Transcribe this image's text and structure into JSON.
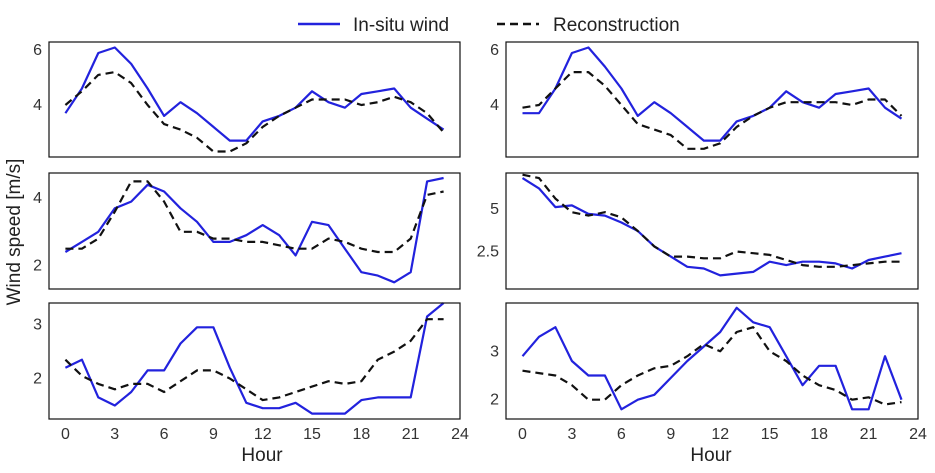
{
  "legend": {
    "items": [
      {
        "label": "In-situ wind",
        "color": "#2222dd",
        "style": "solid"
      },
      {
        "label": "Reconstruction",
        "color": "#111111",
        "style": "dashed"
      }
    ]
  },
  "ylabel": "Wind speed [m/s]",
  "xlabel": "Hour",
  "chart_data": [
    {
      "type": "line",
      "row": 0,
      "col": 0,
      "x": [
        0,
        1,
        2,
        3,
        4,
        5,
        6,
        7,
        8,
        9,
        10,
        11,
        12,
        13,
        14,
        15,
        16,
        17,
        18,
        19,
        20,
        21,
        22,
        23
      ],
      "xlim": [
        -1,
        24
      ],
      "xticks": [
        0,
        3,
        6,
        9,
        12,
        15,
        18,
        21,
        24
      ],
      "ylim": [
        2.1,
        6.3
      ],
      "yticks": [
        4,
        6
      ],
      "series": [
        {
          "name": "In-situ wind",
          "values": [
            3.7,
            4.6,
            5.9,
            6.1,
            5.5,
            4.6,
            3.6,
            4.1,
            3.7,
            3.2,
            2.7,
            2.7,
            3.4,
            3.6,
            3.9,
            4.5,
            4.1,
            3.9,
            4.4,
            4.5,
            4.6,
            3.9,
            3.5,
            3.1
          ]
        },
        {
          "name": "Reconstruction",
          "values": [
            4.0,
            4.5,
            5.1,
            5.2,
            4.8,
            4.0,
            3.3,
            3.1,
            2.8,
            2.3,
            2.3,
            2.6,
            3.2,
            3.6,
            3.9,
            4.2,
            4.2,
            4.2,
            4.0,
            4.1,
            4.3,
            4.1,
            3.7,
            3.0
          ]
        }
      ]
    },
    {
      "type": "line",
      "row": 0,
      "col": 1,
      "x": [
        0,
        1,
        2,
        3,
        4,
        5,
        6,
        7,
        8,
        9,
        10,
        11,
        12,
        13,
        14,
        15,
        16,
        17,
        18,
        19,
        20,
        21,
        22,
        23
      ],
      "xlim": [
        -1,
        24
      ],
      "xticks": [
        0,
        3,
        6,
        9,
        12,
        15,
        18,
        21,
        24
      ],
      "ylim": [
        2.1,
        6.3
      ],
      "yticks": [
        4,
        6
      ],
      "series": [
        {
          "name": "In-situ wind",
          "values": [
            3.7,
            3.7,
            4.6,
            5.9,
            6.1,
            5.4,
            4.6,
            3.6,
            4.1,
            3.7,
            3.2,
            2.7,
            2.7,
            3.4,
            3.6,
            3.9,
            4.5,
            4.1,
            3.9,
            4.4,
            4.5,
            4.6,
            3.9,
            3.5
          ]
        },
        {
          "name": "Reconstruction",
          "values": [
            3.9,
            4.0,
            4.6,
            5.2,
            5.2,
            4.7,
            4.0,
            3.3,
            3.1,
            2.9,
            2.4,
            2.4,
            2.6,
            3.2,
            3.6,
            3.9,
            4.1,
            4.1,
            4.1,
            4.1,
            4.0,
            4.2,
            4.2,
            3.6
          ]
        }
      ]
    },
    {
      "type": "line",
      "row": 1,
      "col": 0,
      "x": [
        0,
        1,
        2,
        3,
        4,
        5,
        6,
        7,
        8,
        9,
        10,
        11,
        12,
        13,
        14,
        15,
        16,
        17,
        18,
        19,
        20,
        21,
        22,
        23
      ],
      "xlim": [
        -1,
        24
      ],
      "xticks": [
        0,
        3,
        6,
        9,
        12,
        15,
        18,
        21,
        24
      ],
      "ylim": [
        1.3,
        4.75
      ],
      "yticks": [
        2,
        4
      ],
      "series": [
        {
          "name": "In-situ wind",
          "values": [
            2.4,
            2.7,
            3.0,
            3.7,
            3.9,
            4.4,
            4.2,
            3.7,
            3.3,
            2.7,
            2.7,
            2.9,
            3.2,
            2.9,
            2.3,
            3.3,
            3.2,
            2.5,
            1.8,
            1.7,
            1.5,
            1.8,
            4.5,
            4.6
          ]
        },
        {
          "name": "Reconstruction",
          "values": [
            2.5,
            2.5,
            2.8,
            3.6,
            4.5,
            4.5,
            3.9,
            3.0,
            3.0,
            2.8,
            2.8,
            2.7,
            2.7,
            2.6,
            2.5,
            2.5,
            2.8,
            2.7,
            2.5,
            2.4,
            2.4,
            2.8,
            4.1,
            4.2
          ]
        }
      ]
    },
    {
      "type": "line",
      "row": 1,
      "col": 1,
      "x": [
        0,
        1,
        2,
        3,
        4,
        5,
        6,
        7,
        8,
        9,
        10,
        11,
        12,
        13,
        14,
        15,
        16,
        17,
        18,
        19,
        20,
        21,
        22,
        23
      ],
      "xlim": [
        -1,
        24
      ],
      "xticks": [
        0,
        3,
        6,
        9,
        12,
        15,
        18,
        21,
        24
      ],
      "ylim": [
        0.3,
        7.1
      ],
      "yticks": [
        2.5,
        5.0
      ],
      "series": [
        {
          "name": "In-situ wind",
          "values": [
            6.8,
            6.2,
            5.1,
            5.2,
            4.7,
            4.6,
            4.2,
            3.7,
            2.8,
            2.2,
            1.6,
            1.5,
            1.1,
            1.2,
            1.3,
            1.9,
            1.7,
            1.9,
            1.9,
            1.8,
            1.5,
            2.0,
            2.2,
            2.4
          ]
        },
        {
          "name": "Reconstruction",
          "values": [
            7.0,
            6.8,
            5.6,
            4.8,
            4.6,
            4.8,
            4.5,
            3.7,
            2.8,
            2.2,
            2.2,
            2.1,
            2.1,
            2.5,
            2.4,
            2.3,
            2.0,
            1.7,
            1.6,
            1.6,
            1.7,
            1.8,
            1.9,
            1.9
          ]
        }
      ]
    },
    {
      "type": "line",
      "row": 2,
      "col": 0,
      "x": [
        0,
        1,
        2,
        3,
        4,
        5,
        6,
        7,
        8,
        9,
        10,
        11,
        12,
        13,
        14,
        15,
        16,
        17,
        18,
        19,
        20,
        21,
        22,
        23
      ],
      "xlim": [
        -1,
        24
      ],
      "xticks": [
        0,
        3,
        6,
        9,
        12,
        15,
        18,
        21,
        24
      ],
      "ylim": [
        1.25,
        3.4
      ],
      "yticks": [
        2,
        3
      ],
      "series": [
        {
          "name": "In-situ wind",
          "values": [
            2.2,
            2.35,
            1.65,
            1.5,
            1.75,
            2.15,
            2.15,
            2.65,
            2.95,
            2.95,
            2.2,
            1.55,
            1.45,
            1.45,
            1.55,
            1.35,
            1.35,
            1.35,
            1.6,
            1.65,
            1.65,
            1.65,
            3.15,
            3.4
          ]
        },
        {
          "name": "Reconstruction",
          "values": [
            2.35,
            2.05,
            1.9,
            1.8,
            1.9,
            1.9,
            1.75,
            1.95,
            2.15,
            2.15,
            2.0,
            1.8,
            1.6,
            1.65,
            1.75,
            1.85,
            1.95,
            1.9,
            1.95,
            2.35,
            2.5,
            2.7,
            3.1,
            3.1
          ]
        }
      ]
    },
    {
      "type": "line",
      "row": 2,
      "col": 1,
      "x": [
        0,
        1,
        2,
        3,
        4,
        5,
        6,
        7,
        8,
        9,
        10,
        11,
        12,
        13,
        14,
        15,
        16,
        17,
        18,
        19,
        20,
        21,
        22,
        23
      ],
      "xlim": [
        -1,
        24
      ],
      "xticks": [
        0,
        3,
        6,
        9,
        12,
        15,
        18,
        21,
        24
      ],
      "ylim": [
        1.6,
        4.0
      ],
      "yticks": [
        2,
        3
      ],
      "series": [
        {
          "name": "In-situ wind",
          "values": [
            2.9,
            3.3,
            3.5,
            2.8,
            2.5,
            2.5,
            1.8,
            2.0,
            2.1,
            2.45,
            2.8,
            3.1,
            3.4,
            3.9,
            3.6,
            3.5,
            2.9,
            2.3,
            2.7,
            2.7,
            1.8,
            1.8,
            2.9,
            2.0
          ]
        },
        {
          "name": "Reconstruction",
          "values": [
            2.6,
            2.55,
            2.5,
            2.3,
            2.0,
            2.0,
            2.3,
            2.5,
            2.65,
            2.7,
            2.9,
            3.15,
            3.0,
            3.4,
            3.5,
            3.0,
            2.8,
            2.5,
            2.3,
            2.2,
            2.0,
            2.05,
            1.9,
            1.95
          ]
        }
      ]
    }
  ]
}
